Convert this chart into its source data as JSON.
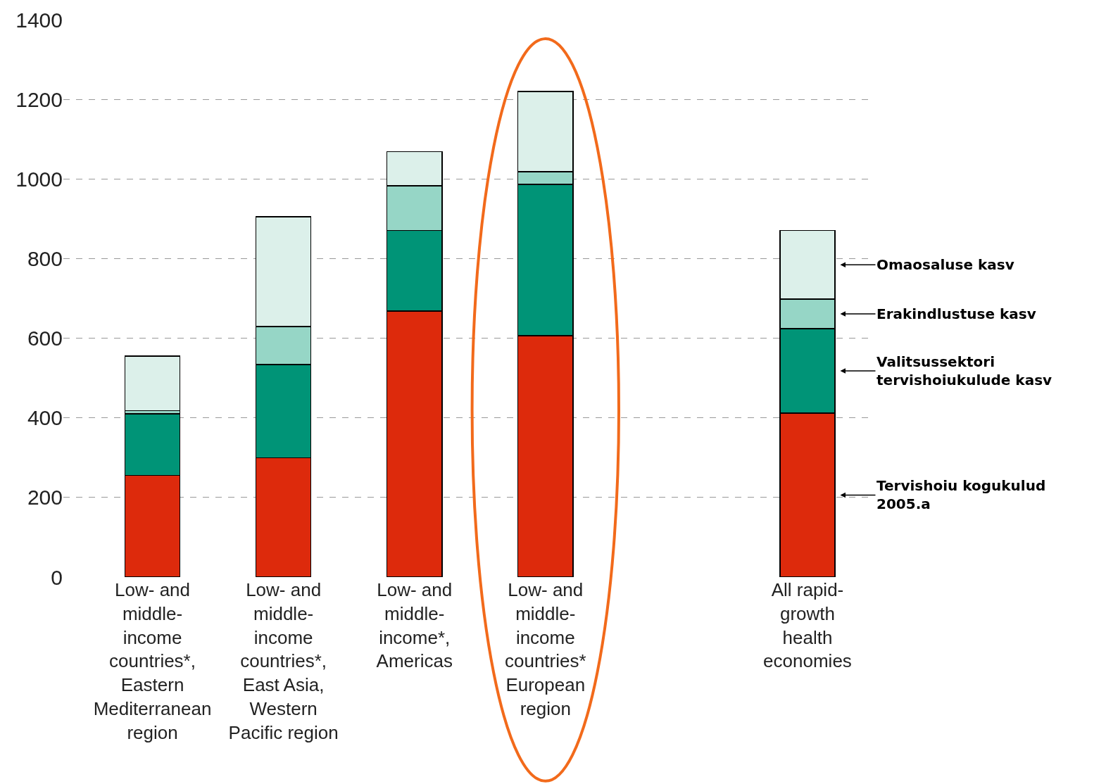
{
  "chart_data": {
    "type": "bar",
    "stacked": true,
    "legend": "right",
    "grid": "y",
    "categories": [
      "Low- and\nmiddle-\nincome\ncountries*,\nEastern\nMediterranean\nregion",
      "Low- and\nmiddle-\nincome\ncountries*,\nEast Asia,\nWestern\nPacific region",
      "Low- and\nmiddle-\nincome*,\nAmericas",
      "Low- and\nmiddle-\nincome\ncountries*\nEuropean\nregion",
      null,
      "All rapid-\ngrowth\nhealth\neconomies"
    ],
    "series": [
      {
        "name": "Tervishoiu kogukulud\n2005.a",
        "color": "#dd2a0c",
        "values": [
          255,
          300,
          668,
          606,
          null,
          412
        ]
      },
      {
        "name": "Valitsussektori\ntervishoiukulude kasv",
        "color": "#009477",
        "values": [
          155,
          234,
          203,
          380,
          null,
          212
        ]
      },
      {
        "name": "Erakindlustuse kasv",
        "color": "#96d6c6",
        "values": [
          8,
          95,
          112,
          32,
          null,
          74
        ]
      },
      {
        "name": "Omaosaluse kasv",
        "color": "#dcf0ea",
        "values": [
          137,
          276,
          86,
          202,
          null,
          173
        ]
      }
    ],
    "ylim": [
      0,
      1400
    ],
    "yticks": [
      0,
      200,
      400,
      600,
      800,
      1000,
      1200,
      1400
    ]
  }
}
